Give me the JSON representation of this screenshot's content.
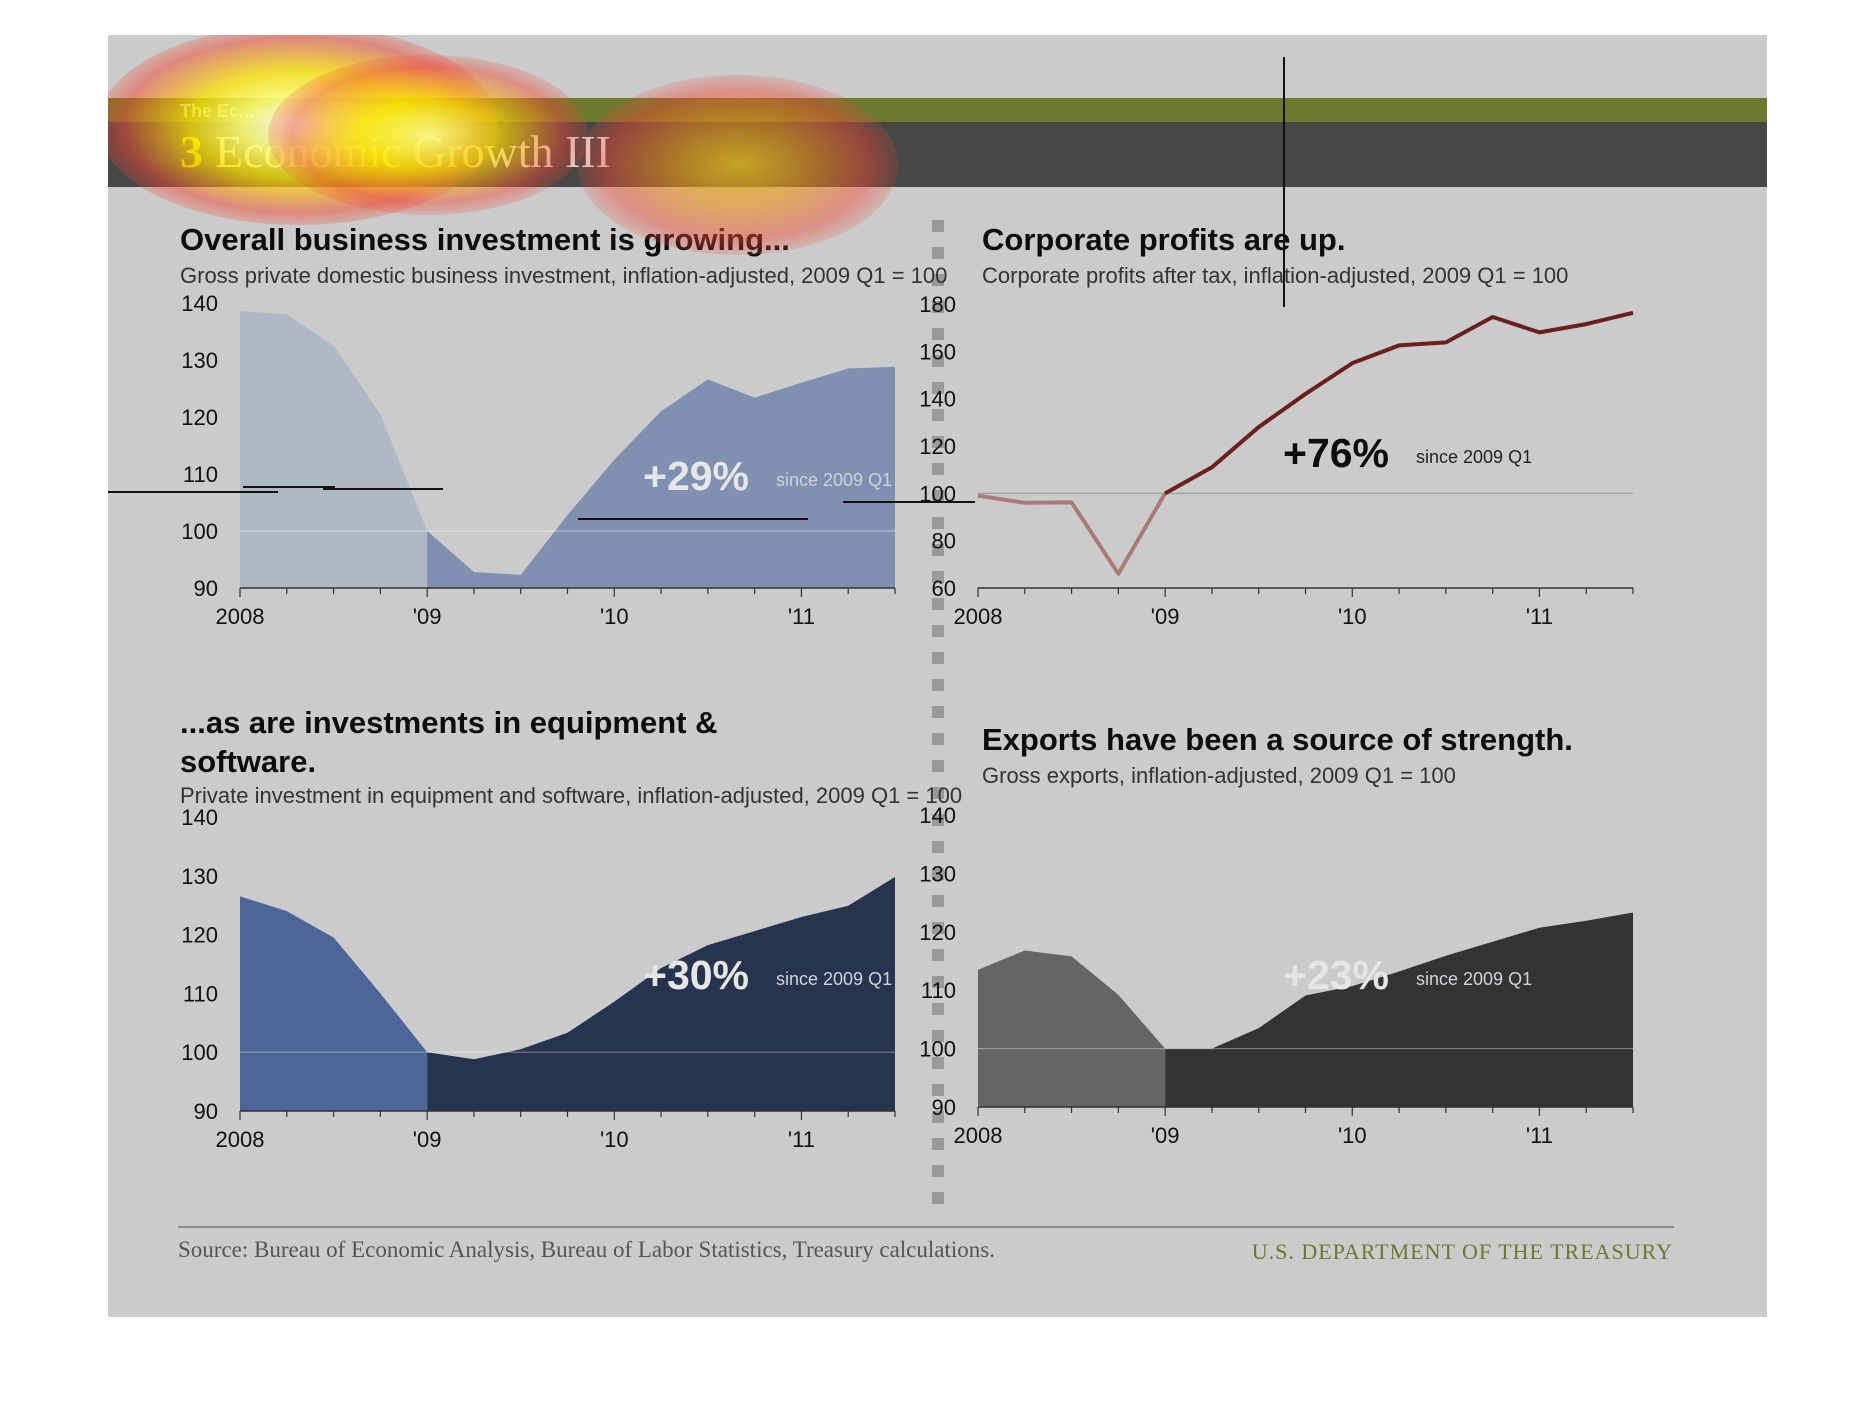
{
  "header": {
    "brand": "The Ec...",
    "number": "3",
    "title": "Economic Growth III"
  },
  "footer": {
    "source": "Source: Bureau of Economic Analysis, Bureau of Labor Statistics, Treasury calculations.",
    "agency": "U.S. DEPARTMENT OF THE TREASURY"
  },
  "colors": {
    "olive": "#6b7a2f",
    "dark_band": "#474747",
    "background": "#cbcbcb",
    "inv_pre": "#b1b8c5",
    "inv_post": "#7f90b0",
    "profit_pre": "#a87a78",
    "profit_post": "#6b2020",
    "equip_pre": "#4d6699",
    "equip_post": "#263450",
    "export_pre": "#656565",
    "export_post": "#333333"
  },
  "chart_data": [
    {
      "type": "area",
      "title": "Overall business investment is growing...",
      "subtitle": "Gross private domestic business investment, inflation-adjusted, 2009 Q1 = 100",
      "x_tick_labels": [
        "2008",
        "'09",
        "'10",
        "'11"
      ],
      "y_ticks": [
        90,
        100,
        110,
        120,
        130,
        140
      ],
      "ylim": [
        90,
        140
      ],
      "x": [
        2008.0,
        2008.25,
        2008.5,
        2008.75,
        2009.0,
        2009.25,
        2009.5,
        2009.75,
        2010.0,
        2010.25,
        2010.5,
        2010.75,
        2011.0,
        2011.25,
        2011.5
      ],
      "values": [
        138.6,
        138.0,
        132.5,
        120.5,
        100,
        92.8,
        92.3,
        102.8,
        112.5,
        121.0,
        126.6,
        123.4,
        126.0,
        128.5,
        128.8
      ],
      "split_x": 2009.0,
      "reference_y": 100,
      "annotation": {
        "value": "+29%",
        "note": "since 2009 Q1"
      }
    },
    {
      "type": "line",
      "title": "Corporate profits are up.",
      "subtitle": "Corporate profits after tax, inflation-adjusted, 2009 Q1 = 100",
      "x_tick_labels": [
        "2008",
        "'09",
        "'10",
        "'11"
      ],
      "y_ticks": [
        60,
        80,
        100,
        120,
        140,
        160,
        180
      ],
      "ylim": [
        60,
        180
      ],
      "x": [
        2008.0,
        2008.25,
        2008.5,
        2008.75,
        2009.0,
        2009.25,
        2009.5,
        2009.75,
        2010.0,
        2010.25,
        2010.5,
        2010.75,
        2011.0,
        2011.25,
        2011.5
      ],
      "values": [
        99,
        96,
        96.2,
        66,
        100,
        111,
        128,
        142,
        155,
        162.5,
        163.8,
        174.5,
        168,
        171.5,
        176.3
      ],
      "split_x": 2009.0,
      "reference_y": 100,
      "annotation": {
        "value": "+76%",
        "note": "since 2009 Q1"
      }
    },
    {
      "type": "area",
      "title": "...as are investments in equipment & software.",
      "subtitle": "Private investment in equipment and software, inflation-adjusted, 2009 Q1 = 100",
      "x_tick_labels": [
        "2008",
        "'09",
        "'10",
        "'11"
      ],
      "y_ticks": [
        90,
        100,
        110,
        120,
        130,
        140
      ],
      "ylim": [
        90,
        140
      ],
      "x": [
        2008.0,
        2008.25,
        2008.5,
        2008.75,
        2009.0,
        2009.25,
        2009.5,
        2009.75,
        2010.0,
        2010.25,
        2010.5,
        2010.75,
        2011.0,
        2011.25,
        2011.5
      ],
      "values": [
        126.5,
        124,
        119.5,
        110,
        100,
        98.8,
        100.5,
        103.3,
        108.6,
        114.3,
        118.2,
        120.6,
        123,
        124.9,
        129.8
      ],
      "split_x": 2009.0,
      "reference_y": 100,
      "annotation": {
        "value": "+30%",
        "note": "since 2009 Q1"
      }
    },
    {
      "type": "area",
      "title": "Exports have been a source of strength.",
      "subtitle": "Gross exports, inflation-adjusted, 2009 Q1 = 100",
      "x_tick_labels": [
        "2008",
        "'09",
        "'10",
        "'11"
      ],
      "y_ticks": [
        90,
        100,
        110,
        120,
        130,
        140
      ],
      "ylim": [
        90,
        140
      ],
      "x": [
        2008.0,
        2008.25,
        2008.5,
        2008.75,
        2009.0,
        2009.25,
        2009.5,
        2009.75,
        2010.0,
        2010.25,
        2010.5,
        2010.75,
        2011.0,
        2011.25,
        2011.5
      ],
      "values": [
        113.5,
        116.8,
        115.8,
        109.2,
        100,
        100,
        103.5,
        109.1,
        110.7,
        113.2,
        115.9,
        118.3,
        120.7,
        121.9,
        123.3
      ],
      "split_x": 2009.0,
      "reference_y": 100,
      "annotation": {
        "value": "+23%",
        "note": "since 2009 Q1"
      }
    }
  ]
}
